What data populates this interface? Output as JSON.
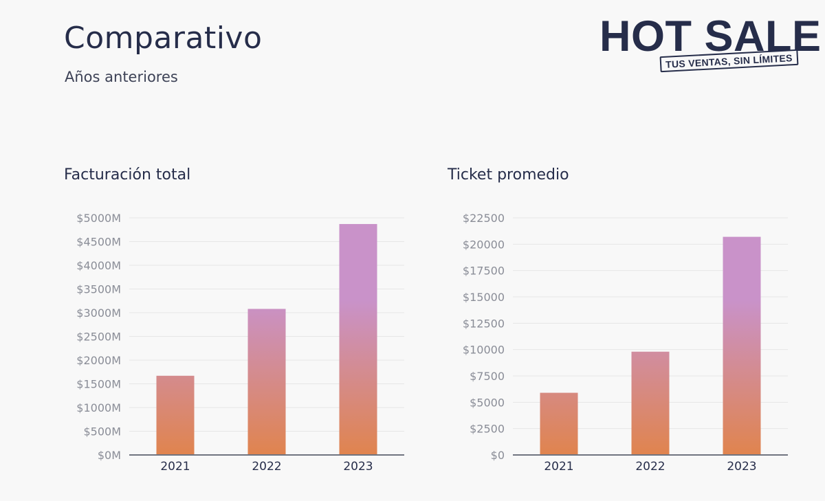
{
  "header": {
    "title": "Comparativo",
    "subtitle": "Años anteriores"
  },
  "logo": {
    "main": "HOT SALE",
    "tagline": "TUS VENTAS, SIN LÍMITES"
  },
  "colors": {
    "bar_top": "#c992c9",
    "bar_bottom": "#e0844e",
    "axis": "#707480",
    "grid": "#e6e6e6",
    "tick_text": "#8a8d97",
    "title_text": "#262d4a"
  },
  "chart_data": [
    {
      "type": "bar",
      "title": "Facturación total",
      "categories": [
        "2021",
        "2022",
        "2023"
      ],
      "values": [
        1670,
        3080,
        4870
      ],
      "unit": "M ARS",
      "ylim": [
        0,
        5000
      ],
      "yticks": [
        "$0M",
        "$500M",
        "$1000M",
        "$1500M",
        "$2000M",
        "$2500M",
        "$3000M",
        "$3500M",
        "$4000M",
        "$4500M",
        "$5000M"
      ],
      "grid": true
    },
    {
      "type": "bar",
      "title": "Ticket promedio",
      "categories": [
        "2021",
        "2022",
        "2023"
      ],
      "values": [
        5900,
        9800,
        20700
      ],
      "unit": "ARS",
      "ylim": [
        0,
        22500
      ],
      "yticks": [
        "$0",
        "$2500",
        "$5000",
        "$7500",
        "$10000",
        "$12500",
        "$15000",
        "$17500",
        "$20000",
        "$22500"
      ],
      "grid": true
    }
  ]
}
